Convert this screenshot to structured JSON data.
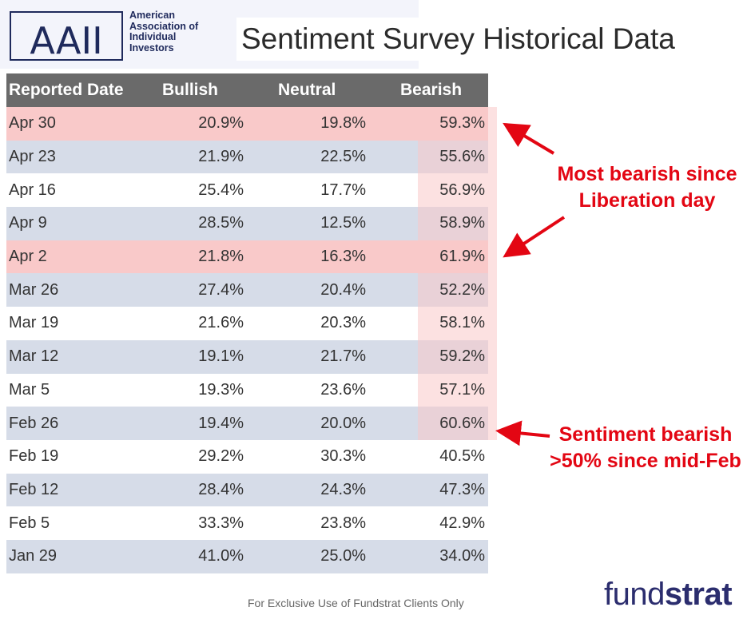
{
  "header": {
    "logo_initials": "AAII",
    "logo_lines": [
      "American",
      "Association of",
      "Individual",
      "Investors"
    ],
    "title": "Sentiment Survey Historical Data"
  },
  "colors": {
    "header_bg": "#6a6a6a",
    "row_shaded": "#d6dce8",
    "row_highlight": "#f9c9c9",
    "annotation": "#e30613",
    "brand": "#2b2d6e"
  },
  "chart_data": {
    "type": "table",
    "columns": [
      "Reported Date",
      "Bullish",
      "Neutral",
      "Bearish"
    ],
    "rows": [
      {
        "date": "Apr 30",
        "bullish": "20.9%",
        "neutral": "19.8%",
        "bearish": "59.3%",
        "highlight": true
      },
      {
        "date": "Apr 23",
        "bullish": "21.9%",
        "neutral": "22.5%",
        "bearish": "55.6%"
      },
      {
        "date": "Apr 16",
        "bullish": "25.4%",
        "neutral": "17.7%",
        "bearish": "56.9%"
      },
      {
        "date": "Apr 9",
        "bullish": "28.5%",
        "neutral": "12.5%",
        "bearish": "58.9%"
      },
      {
        "date": "Apr 2",
        "bullish": "21.8%",
        "neutral": "16.3%",
        "bearish": "61.9%",
        "highlight": true
      },
      {
        "date": "Mar 26",
        "bullish": "27.4%",
        "neutral": "20.4%",
        "bearish": "52.2%"
      },
      {
        "date": "Mar 19",
        "bullish": "21.6%",
        "neutral": "20.3%",
        "bearish": "58.1%"
      },
      {
        "date": "Mar 12",
        "bullish": "19.1%",
        "neutral": "21.7%",
        "bearish": "59.2%"
      },
      {
        "date": "Mar 5",
        "bullish": "19.3%",
        "neutral": "23.6%",
        "bearish": "57.1%"
      },
      {
        "date": "Feb 26",
        "bullish": "19.4%",
        "neutral": "20.0%",
        "bearish": "60.6%"
      },
      {
        "date": "Feb 19",
        "bullish": "29.2%",
        "neutral": "30.3%",
        "bearish": "40.5%"
      },
      {
        "date": "Feb 12",
        "bullish": "28.4%",
        "neutral": "24.3%",
        "bearish": "47.3%"
      },
      {
        "date": "Feb 5",
        "bullish": "33.3%",
        "neutral": "23.8%",
        "bearish": "42.9%"
      },
      {
        "date": "Jan 29",
        "bullish": "41.0%",
        "neutral": "25.0%",
        "bearish": "34.0%"
      }
    ],
    "annotations": [
      {
        "lines": [
          "Most bearish since",
          "Liberation day"
        ]
      },
      {
        "lines": [
          "Sentiment bearish",
          ">50% since mid-Feb"
        ]
      }
    ]
  },
  "footer": {
    "disclaimer": "For Exclusive Use of Fundstrat Clients Only",
    "brand_light": "fund",
    "brand_bold": "strat"
  }
}
